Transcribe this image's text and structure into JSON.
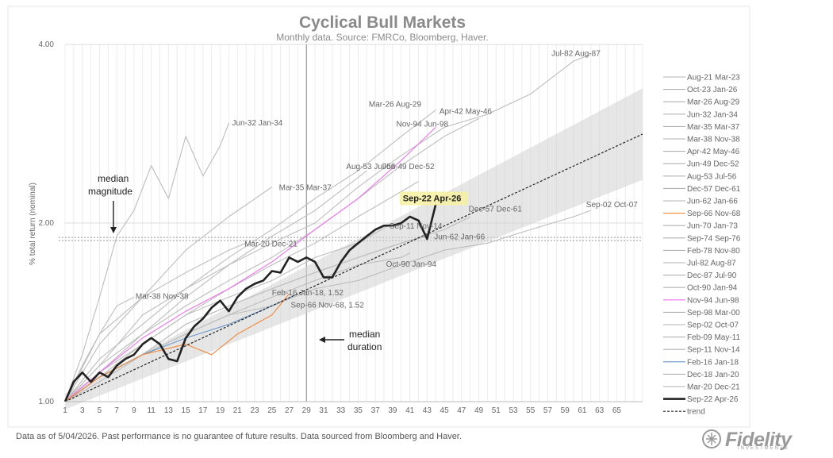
{
  "chart_data": {
    "type": "line",
    "title": "Cyclical Bull Markets",
    "subtitle": "Monthly data.  Source: FMRCo, Bloomberg, Haver.",
    "ylabel": "% total return (nominal)",
    "xlabel": "",
    "xlim": [
      1,
      68
    ],
    "ylim": [
      1.0,
      4.0
    ],
    "y_scale": "log",
    "y_ticks": [
      "1.00",
      "2.00",
      "4.00"
    ],
    "x_ticks": [
      "1",
      "3",
      "5",
      "7",
      "9",
      "11",
      "13",
      "15",
      "17",
      "19",
      "21",
      "23",
      "25",
      "27",
      "29",
      "31",
      "33",
      "35",
      "37",
      "39",
      "41",
      "43",
      "45",
      "47",
      "49",
      "51",
      "53",
      "55",
      "57",
      "59",
      "61",
      "63",
      "65"
    ],
    "median_magnitude": 1.88,
    "median_duration": 29,
    "grid": true,
    "legend_position": "right",
    "legend": [
      {
        "name": "Aug-21 Mar-23",
        "color": "#b0b0b0"
      },
      {
        "name": "Oct-23 Jan-26",
        "color": "#b0b0b0"
      },
      {
        "name": "Mar-26 Aug-29",
        "color": "#b0b0b0"
      },
      {
        "name": "Jun-32 Jan-34",
        "color": "#b0b0b0"
      },
      {
        "name": "Mar-35 Mar-37",
        "color": "#b0b0b0"
      },
      {
        "name": "Mar-38 Nov-38",
        "color": "#b0b0b0"
      },
      {
        "name": "Apr-42 May-46",
        "color": "#b0b0b0"
      },
      {
        "name": "Jun-49 Dec-52",
        "color": "#b0b0b0"
      },
      {
        "name": "Aug-53 Jul-56",
        "color": "#b0b0b0"
      },
      {
        "name": "Dec-57 Dec-61",
        "color": "#b0b0b0"
      },
      {
        "name": "Jun-62 Jan-66",
        "color": "#b0b0b0"
      },
      {
        "name": "Sep-66 Nov-68",
        "color": "#f08a3c"
      },
      {
        "name": "Jun-70 Jan-73",
        "color": "#b0b0b0"
      },
      {
        "name": "Sep-74 Sep-76",
        "color": "#b0b0b0"
      },
      {
        "name": "Feb-78 Nov-80",
        "color": "#b0b0b0"
      },
      {
        "name": "Jul-82 Aug-87",
        "color": "#b0b0b0"
      },
      {
        "name": "Dec-87 Jul-90",
        "color": "#b0b0b0"
      },
      {
        "name": "Oct-90 Jan-94",
        "color": "#b0b0b0"
      },
      {
        "name": "Nov-94 Jun-98",
        "color": "#f070f0"
      },
      {
        "name": "Sep-98 Mar-00",
        "color": "#b0b0b0"
      },
      {
        "name": "Sep-02 Oct-07",
        "color": "#b0b0b0"
      },
      {
        "name": "Feb-09 May-11",
        "color": "#b0b0b0"
      },
      {
        "name": "Sep-11 Nov-14",
        "color": "#b0b0b0"
      },
      {
        "name": "Feb-16 Jan-18",
        "color": "#6a98c8"
      },
      {
        "name": "Dec-18 Jan-20",
        "color": "#b0b0b0"
      },
      {
        "name": "Mar-20 Dec-21",
        "color": "#b0b0b0"
      },
      {
        "name": "Sep-22 Apr-26",
        "color": "#222222",
        "bold": true
      },
      {
        "name": "trend",
        "color": "#222222",
        "dashed": true
      }
    ],
    "series": [
      {
        "name": "Jul-82 Aug-87",
        "color": "#bdbdbd",
        "x": [
          1,
          5,
          10,
          15,
          20,
          25,
          30,
          35,
          40,
          45,
          50,
          55,
          60,
          62
        ],
        "values": [
          1.0,
          1.15,
          1.4,
          1.55,
          1.7,
          1.85,
          2.0,
          2.3,
          2.6,
          2.9,
          3.05,
          3.3,
          3.75,
          3.85
        ]
      },
      {
        "name": "Mar-26 Aug-29",
        "color": "#bdbdbd",
        "x": [
          1,
          5,
          10,
          15,
          20,
          25,
          30,
          35,
          40,
          44
        ],
        "values": [
          1.0,
          1.18,
          1.35,
          1.55,
          1.75,
          1.95,
          2.2,
          2.45,
          2.8,
          3.1
        ]
      },
      {
        "name": "Apr-42 May-46",
        "color": "#bdbdbd",
        "x": [
          1,
          5,
          10,
          15,
          20,
          25,
          30,
          35,
          40,
          45,
          49
        ],
        "values": [
          1.0,
          1.12,
          1.3,
          1.45,
          1.6,
          1.75,
          1.95,
          2.2,
          2.5,
          2.8,
          3.0
        ]
      },
      {
        "name": "Jun-32 Jan-34",
        "color": "#bdbdbd",
        "x": [
          1,
          3,
          5,
          7,
          9,
          11,
          13,
          15,
          17,
          19,
          20
        ],
        "values": [
          1.0,
          1.2,
          1.5,
          1.9,
          2.1,
          2.5,
          2.2,
          2.8,
          2.4,
          2.7,
          2.95
        ]
      },
      {
        "name": "Mar-35 Mar-37",
        "color": "#bdbdbd",
        "x": [
          1,
          5,
          10,
          15,
          20,
          25
        ],
        "values": [
          1.0,
          1.25,
          1.5,
          1.8,
          2.05,
          2.3
        ]
      },
      {
        "name": "Aug-53 Jul-56",
        "color": "#bdbdbd",
        "x": [
          1,
          5,
          10,
          15,
          20,
          25,
          30,
          36
        ],
        "values": [
          1.0,
          1.15,
          1.3,
          1.5,
          1.7,
          1.9,
          2.1,
          2.45
        ]
      },
      {
        "name": "Jun-49 Dec-52",
        "color": "#bdbdbd",
        "x": [
          1,
          5,
          10,
          15,
          20,
          25,
          30,
          35,
          42
        ],
        "values": [
          1.0,
          1.12,
          1.25,
          1.4,
          1.55,
          1.7,
          1.85,
          2.05,
          2.35
        ]
      },
      {
        "name": "Nov-94 Jun-98",
        "color": "#f070f0",
        "x": [
          1,
          5,
          10,
          15,
          20,
          25,
          30,
          35,
          40,
          44
        ],
        "values": [
          1.0,
          1.12,
          1.28,
          1.42,
          1.55,
          1.72,
          1.95,
          2.2,
          2.55,
          2.9
        ]
      },
      {
        "name": "Dec-57 Dec-61",
        "color": "#bdbdbd",
        "x": [
          1,
          5,
          10,
          15,
          20,
          25,
          30,
          35,
          40,
          45,
          48
        ],
        "values": [
          1.0,
          1.1,
          1.2,
          1.35,
          1.45,
          1.55,
          1.65,
          1.75,
          1.85,
          1.95,
          2.05
        ]
      },
      {
        "name": "Sep-02 Oct-07",
        "color": "#bdbdbd",
        "x": [
          1,
          5,
          10,
          15,
          20,
          25,
          30,
          35,
          40,
          45,
          50,
          55,
          60,
          62
        ],
        "values": [
          1.0,
          1.08,
          1.2,
          1.3,
          1.4,
          1.45,
          1.55,
          1.6,
          1.7,
          1.8,
          1.85,
          1.95,
          2.05,
          2.1
        ]
      },
      {
        "name": "Sep-11 Nov-14",
        "color": "#bdbdbd",
        "x": [
          1,
          5,
          10,
          15,
          20,
          25,
          30,
          35,
          39
        ],
        "values": [
          1.0,
          1.1,
          1.25,
          1.4,
          1.5,
          1.6,
          1.75,
          1.85,
          2.0
        ]
      },
      {
        "name": "Jun-62 Jan-66",
        "color": "#bdbdbd",
        "x": [
          1,
          5,
          10,
          15,
          20,
          25,
          30,
          35,
          40,
          43
        ],
        "values": [
          1.0,
          1.1,
          1.2,
          1.35,
          1.45,
          1.55,
          1.65,
          1.75,
          1.85,
          1.9
        ]
      },
      {
        "name": "Mar-20 Dec-21",
        "color": "#bdbdbd",
        "x": [
          1,
          5,
          10,
          15,
          20,
          22
        ],
        "values": [
          1.0,
          1.3,
          1.5,
          1.65,
          1.8,
          1.85
        ]
      },
      {
        "name": "Oct-90 Jan-94",
        "color": "#bdbdbd",
        "x": [
          1,
          5,
          10,
          15,
          20,
          25,
          30,
          35,
          40,
          41
        ],
        "values": [
          1.0,
          1.1,
          1.2,
          1.3,
          1.4,
          1.5,
          1.6,
          1.7,
          1.75,
          1.78
        ]
      },
      {
        "name": "Mar-38 Nov-38",
        "color": "#bdbdbd",
        "x": [
          1,
          3,
          5,
          7,
          9
        ],
        "values": [
          1.0,
          1.15,
          1.3,
          1.45,
          1.5
        ]
      },
      {
        "name": "Feb-16 Jan-18",
        "color": "#6a98c8",
        "x": [
          1,
          5,
          10,
          15,
          20,
          25,
          28
        ],
        "values": [
          1.0,
          1.1,
          1.2,
          1.28,
          1.35,
          1.45,
          1.52
        ]
      },
      {
        "name": "Sep-66 Nov-68",
        "color": "#f08a3c",
        "x": [
          1,
          5,
          10,
          15,
          18,
          21,
          25,
          27
        ],
        "values": [
          1.0,
          1.1,
          1.2,
          1.25,
          1.2,
          1.3,
          1.4,
          1.52
        ]
      },
      {
        "name": "Sep-22 Apr-26",
        "color": "#222222",
        "x": [
          1,
          2,
          3,
          4,
          5,
          6,
          7,
          8,
          9,
          10,
          11,
          12,
          13,
          14,
          15,
          16,
          17,
          18,
          19,
          20,
          21,
          22,
          23,
          24,
          25,
          26,
          27,
          28,
          29,
          30,
          31,
          32,
          33,
          34,
          35,
          36,
          37,
          38,
          39,
          40,
          41,
          42,
          43,
          44
        ],
        "values": [
          1.0,
          1.08,
          1.12,
          1.08,
          1.12,
          1.1,
          1.15,
          1.18,
          1.2,
          1.25,
          1.28,
          1.25,
          1.18,
          1.17,
          1.28,
          1.34,
          1.38,
          1.44,
          1.48,
          1.42,
          1.5,
          1.55,
          1.58,
          1.6,
          1.66,
          1.65,
          1.75,
          1.72,
          1.75,
          1.72,
          1.62,
          1.62,
          1.72,
          1.8,
          1.85,
          1.9,
          1.95,
          1.98,
          1.98,
          2.0,
          2.05,
          2.02,
          1.88,
          2.15
        ]
      }
    ],
    "annotations": {
      "median_magnitude": "median\nmagnitude",
      "median_duration": "median\nduration",
      "current": "Sep-22 Apr-26",
      "dec57": "Dec-57 Dec-61",
      "sep02": "Sep-02 Oct-07",
      "jul82": "Jul-82 Aug-87",
      "mar26": "Mar-26 Aug-29",
      "apr42": "Apr-42 May-46",
      "jun32": "Jun-32 Jan-34",
      "nov94": "Nov-94 Jun-98",
      "aug53": "Aug-53 Jul-56",
      "jun49": "Jun-49 Dec-52",
      "mar35": "Mar-35 Mar-37",
      "sep11": "Sep-11 Nov-14",
      "jun62": "Jun-62 Jan-66",
      "mar20": "Mar-20 Dec-21",
      "oct90": "Oct-90 Jan-94",
      "mar38": "Mar-38 Nov-38",
      "feb16": "Feb-16 Jan-18, 1.52",
      "sep66": "Sep-66 Nov-68, 1.52"
    }
  },
  "footnote": "Data as of 5/04/2026. Past performance is no guarantee of future results. Data sourced from Bloomberg and Haver.",
  "logo": {
    "text": "Fidelity",
    "sub": "INVESTMENTS"
  }
}
